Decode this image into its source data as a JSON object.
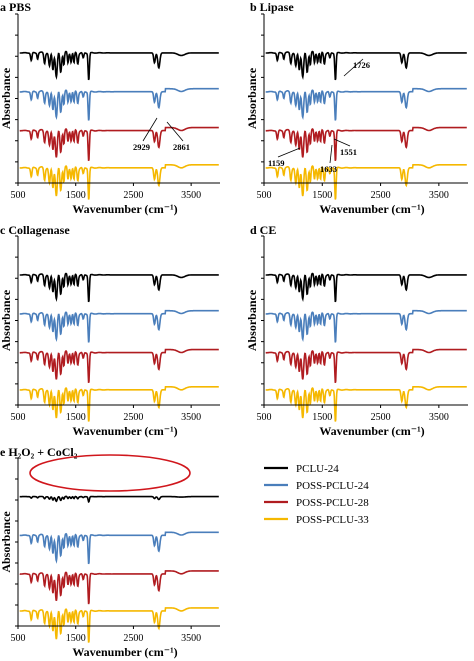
{
  "figure": {
    "colors": {
      "PCLU-24": "#000000",
      "POSS-PCLU-24": "#4a7ebb",
      "POSS-PCLU-28": "#b01c20",
      "POSS-PCLU-33": "#f5b800"
    },
    "legend": {
      "placement": "bottom-right",
      "entries": [
        "PCLU-24",
        "POSS-PCLU-24",
        "POSS-PCLU-28",
        "POSS-PCLU-33"
      ]
    }
  },
  "chart_data": [
    {
      "type": "line",
      "title": "a PBS",
      "xlabel": "Wavenumber (cm⁻¹)",
      "ylabel": "Absorbance",
      "xlim": [
        500,
        4000
      ],
      "xticks": [
        "500",
        "1500",
        "2500",
        "3500"
      ],
      "series": [
        {
          "name": "PCLU-24",
          "offset": 3
        },
        {
          "name": "POSS-PCLU-24",
          "offset": 2
        },
        {
          "name": "POSS-PCLU-28",
          "offset": 1
        },
        {
          "name": "POSS-PCLU-33",
          "offset": 0
        }
      ],
      "annotations": [
        {
          "text": "2929",
          "x": 2929
        },
        {
          "text": "2861",
          "x": 2861
        }
      ],
      "ellipse": null
    },
    {
      "type": "line",
      "title": "b Lipase",
      "xlabel": "Wavenumber (cm⁻¹)",
      "ylabel": "Absorbance",
      "xlim": [
        500,
        4000
      ],
      "xticks": [
        "500",
        "1500",
        "2500",
        "3500"
      ],
      "series": [
        {
          "name": "PCLU-24",
          "offset": 3
        },
        {
          "name": "POSS-PCLU-24",
          "offset": 2
        },
        {
          "name": "POSS-PCLU-28",
          "offset": 1
        },
        {
          "name": "POSS-PCLU-33",
          "offset": 0
        }
      ],
      "annotations": [
        {
          "text": "1726",
          "x": 1726
        },
        {
          "text": "1159",
          "x": 1159
        },
        {
          "text": "1551",
          "x": 1551
        },
        {
          "text": "1633",
          "x": 1633
        }
      ],
      "ellipse": null
    },
    {
      "type": "line",
      "title": "c Collagenase",
      "xlabel": "Wavenumber (cm⁻¹)",
      "ylabel": "Absorbance",
      "xlim": [
        500,
        4000
      ],
      "xticks": [
        "500",
        "1500",
        "2500",
        "3500"
      ],
      "series": [
        {
          "name": "PCLU-24",
          "offset": 3
        },
        {
          "name": "POSS-PCLU-24",
          "offset": 2
        },
        {
          "name": "POSS-PCLU-28",
          "offset": 1
        },
        {
          "name": "POSS-PCLU-33",
          "offset": 0
        }
      ],
      "annotations": [],
      "ellipse": null
    },
    {
      "type": "line",
      "title": "d CE",
      "xlabel": "Wavenumber (cm⁻¹)",
      "ylabel": "Absorbance",
      "xlim": [
        500,
        4000
      ],
      "xticks": [
        "500",
        "1500",
        "2500",
        "3500"
      ],
      "series": [
        {
          "name": "PCLU-24",
          "offset": 3
        },
        {
          "name": "POSS-PCLU-24",
          "offset": 2
        },
        {
          "name": "POSS-PCLU-28",
          "offset": 1
        },
        {
          "name": "POSS-PCLU-33",
          "offset": 0
        }
      ],
      "annotations": [],
      "ellipse": null
    },
    {
      "type": "line",
      "title": "e H₂O₂ + CoCl₂",
      "xlabel": "Wavenumber (cm⁻¹)",
      "ylabel": "Absorbance",
      "xlim": [
        500,
        4000
      ],
      "xticks": [
        "500",
        "1500",
        "2500",
        "3500"
      ],
      "series": [
        {
          "name": "PCLU-24",
          "offset": 3,
          "degraded": true
        },
        {
          "name": "POSS-PCLU-24",
          "offset": 2
        },
        {
          "name": "POSS-PCLU-28",
          "offset": 1
        },
        {
          "name": "POSS-PCLU-33",
          "offset": 0
        }
      ],
      "annotations": [],
      "ellipse": {
        "series": "PCLU-24",
        "color": "#d0161c"
      }
    }
  ]
}
